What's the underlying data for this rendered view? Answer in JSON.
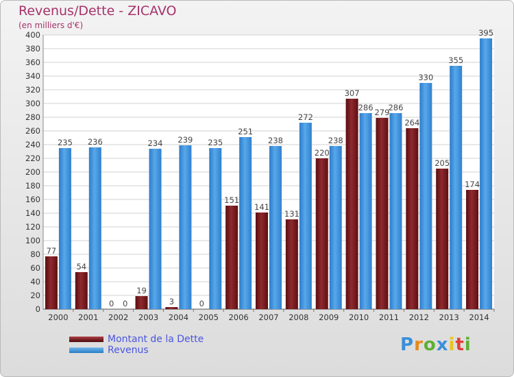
{
  "header": {
    "title": "Revenus/Dette - ZICAVO",
    "subtitle": "(en milliers d'€)"
  },
  "legend": {
    "dette_label": "Montant de la Dette",
    "revenus_label": "Revenus"
  },
  "logo": {
    "text": "Proxiti"
  },
  "colors": {
    "dette": "#7a1a1e",
    "revenus": "#3d93dc",
    "title": "#a5326a",
    "legend_text": "#4a55e0"
  },
  "chart_data": {
    "type": "bar",
    "title": "Revenus/Dette - ZICAVO",
    "subtitle": "(en milliers d'€)",
    "xlabel": "",
    "ylabel": "",
    "ylim": [
      0,
      400
    ],
    "yticks": [
      0,
      20,
      40,
      60,
      80,
      100,
      120,
      140,
      160,
      180,
      200,
      220,
      240,
      260,
      280,
      300,
      320,
      340,
      360,
      380,
      400
    ],
    "grid": true,
    "legend_position": "bottom-left",
    "categories": [
      "2000",
      "2001",
      "2002",
      "2003",
      "2004",
      "2005",
      "2006",
      "2007",
      "2008",
      "2009",
      "2010",
      "2011",
      "2012",
      "2013",
      "2014"
    ],
    "series": [
      {
        "name": "Montant de la Dette",
        "values": [
          77,
          54,
          0,
          19,
          3,
          0,
          151,
          141,
          131,
          220,
          307,
          279,
          264,
          205,
          174
        ]
      },
      {
        "name": "Revenus",
        "values": [
          235,
          236,
          0,
          234,
          239,
          235,
          251,
          238,
          272,
          238,
          286,
          286,
          330,
          355,
          395
        ]
      }
    ]
  }
}
